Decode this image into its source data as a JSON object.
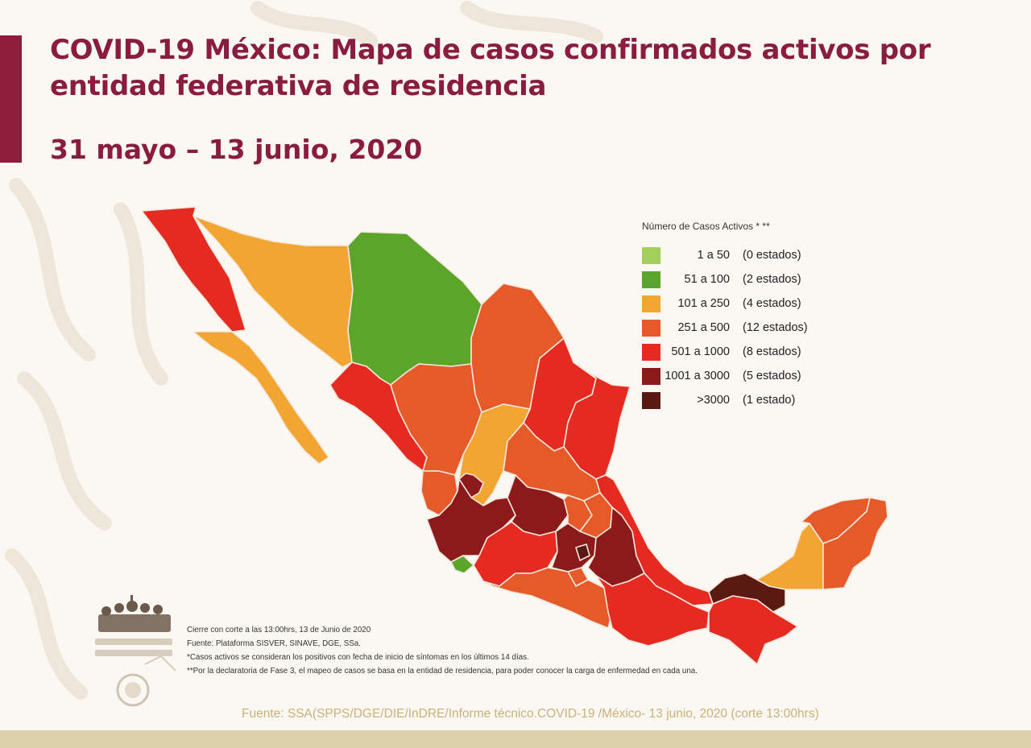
{
  "header": {
    "title": "COVID-19 México: Mapa de casos confirmados activos por entidad federativa de residencia",
    "date_range": "31 mayo – 13 junio, 2020"
  },
  "legend": {
    "title": "Número de Casos Activos * **",
    "items": [
      {
        "range": "1 a 50",
        "count": "(0 estados)",
        "color": "#a1cf5a"
      },
      {
        "range": "51 a 100",
        "count": "(2 estados)",
        "color": "#5aa52a"
      },
      {
        "range": "101 a 250",
        "count": "(4 estados)",
        "color": "#f2a530"
      },
      {
        "range": "251 a 500",
        "count": "(12 estados)",
        "color": "#e65a2a"
      },
      {
        "range": "501 a 1000",
        "count": "(8 estados)",
        "color": "#e52a22"
      },
      {
        "range": "1001 a 3000",
        "count": "(5 estados)",
        "color": "#8c1a1a"
      },
      {
        "range": ">3000",
        "count": "(1 estado)",
        "color": "#5a1a12"
      }
    ]
  },
  "notes": [
    "Cierre con corte a las 13:00hrs, 13 de Junio de 2020",
    "Fuente: Plataforma SISVER, SINAVE, DGE, SSa.",
    "*Casos activos se consideran los positivos con fecha de inicio de síntomas en los últimos 14 días.",
    "**Por la declaratoria de Fase 3, el mapeo de casos se basa en la entidad de residencia, para poder conocer la carga de enfermedad en cada una."
  ],
  "source": "Fuente: SSA(SPPS/DGE/DIE/InDRE/Informe técnico.COVID-19 /México- 13 junio, 2020 (corte 13:00hrs)",
  "colors": {
    "accent": "#8e1d3c",
    "title": "#8a1c3f",
    "source_text": "#c9b178"
  }
}
